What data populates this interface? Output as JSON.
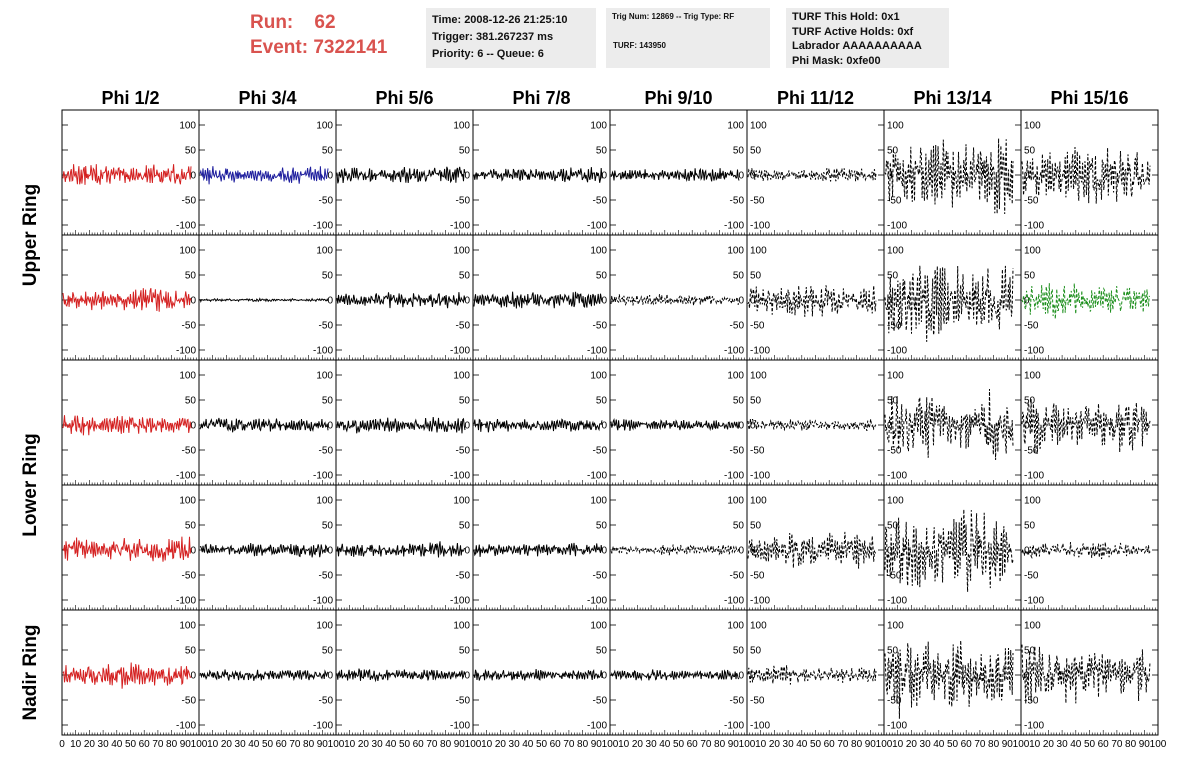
{
  "header": {
    "run_label": "Run:",
    "run_value": "62",
    "event_label": "Event:",
    "event_value": "7322141"
  },
  "info_box_1": {
    "line1": "Time: 2008-12-26 21:25:10",
    "line2": "Trigger: 381.267237 ms",
    "line3": "Priority: 6 -- Queue: 6"
  },
  "info_box_2": {
    "line1": "Trig Num: 12869 -- Trig Type: RF",
    "line2": "TURF: 143950"
  },
  "info_box_3": {
    "line1": "TURF This Hold: 0x1",
    "line2": "TURF Active Holds: 0xf",
    "line3": "Labrador AAAAAAAAAA",
    "line4": "Phi Mask: 0xfe00"
  },
  "colors": {
    "highlight_red": "#d42020",
    "highlight_blue": "#1f1f9e",
    "highlight_green": "#1d8f1d",
    "default_trace": "#000000",
    "header_text": "#d9534f",
    "info_box_bg": "#ececec"
  },
  "chart_data": {
    "type": "line",
    "columns": [
      "Phi 1/2",
      "Phi 3/4",
      "Phi 5/6",
      "Phi 7/8",
      "Phi 9/10",
      "Phi 11/12",
      "Phi 13/14",
      "Phi 15/16"
    ],
    "rows": [
      "Upper Ring",
      "Lower Ring",
      "Nadir Ring"
    ],
    "ylim": [
      -120,
      130
    ],
    "xlim": [
      0,
      100
    ],
    "y_ticks": [
      -100,
      -50,
      0,
      50,
      100
    ],
    "x_ticks": [
      0,
      10,
      20,
      30,
      40,
      50,
      60,
      70,
      80,
      90,
      100
    ],
    "panels": [
      {
        "row": 0,
        "col": 0,
        "amplitude": 22,
        "style": "solid",
        "color": "red"
      },
      {
        "row": 0,
        "col": 1,
        "amplitude": 18,
        "style": "solid",
        "color": "blue"
      },
      {
        "row": 0,
        "col": 2,
        "amplitude": 17,
        "style": "solid",
        "color": "black"
      },
      {
        "row": 0,
        "col": 3,
        "amplitude": 15,
        "style": "solid",
        "color": "black"
      },
      {
        "row": 0,
        "col": 4,
        "amplitude": 13,
        "style": "solid",
        "color": "black"
      },
      {
        "row": 0,
        "col": 5,
        "amplitude": 14,
        "style": "dashed",
        "color": "black"
      },
      {
        "row": 0,
        "col": 6,
        "amplitude": 75,
        "style": "dashed",
        "color": "black"
      },
      {
        "row": 0,
        "col": 7,
        "amplitude": 60,
        "style": "dashed",
        "color": "black"
      },
      {
        "row": 1,
        "col": 0,
        "amplitude": 22,
        "style": "solid",
        "color": "red"
      },
      {
        "row": 1,
        "col": 1,
        "amplitude": 3,
        "style": "solid",
        "color": "black"
      },
      {
        "row": 1,
        "col": 2,
        "amplitude": 16,
        "style": "solid",
        "color": "black"
      },
      {
        "row": 1,
        "col": 3,
        "amplitude": 17,
        "style": "solid",
        "color": "black"
      },
      {
        "row": 1,
        "col": 4,
        "amplitude": 12,
        "style": "dashed",
        "color": "black"
      },
      {
        "row": 1,
        "col": 5,
        "amplitude": 32,
        "style": "dashed",
        "color": "black"
      },
      {
        "row": 1,
        "col": 6,
        "amplitude": 80,
        "style": "dashed",
        "color": "black"
      },
      {
        "row": 1,
        "col": 7,
        "amplitude": 33,
        "style": "dashed",
        "color": "green"
      },
      {
        "row": 2,
        "col": 0,
        "amplitude": 20,
        "style": "solid",
        "color": "red"
      },
      {
        "row": 2,
        "col": 1,
        "amplitude": 15,
        "style": "solid",
        "color": "black"
      },
      {
        "row": 2,
        "col": 2,
        "amplitude": 17,
        "style": "solid",
        "color": "black"
      },
      {
        "row": 2,
        "col": 3,
        "amplitude": 14,
        "style": "solid",
        "color": "black"
      },
      {
        "row": 2,
        "col": 4,
        "amplitude": 11,
        "style": "solid",
        "color": "black"
      },
      {
        "row": 2,
        "col": 5,
        "amplitude": 12,
        "style": "dashed",
        "color": "black"
      },
      {
        "row": 2,
        "col": 6,
        "amplitude": 70,
        "style": "dashed",
        "color": "black"
      },
      {
        "row": 2,
        "col": 7,
        "amplitude": 55,
        "style": "dashed",
        "color": "black"
      },
      {
        "row": 3,
        "col": 0,
        "amplitude": 25,
        "style": "solid",
        "color": "red"
      },
      {
        "row": 3,
        "col": 1,
        "amplitude": 14,
        "style": "solid",
        "color": "black"
      },
      {
        "row": 3,
        "col": 2,
        "amplitude": 15,
        "style": "solid",
        "color": "black"
      },
      {
        "row": 3,
        "col": 3,
        "amplitude": 14,
        "style": "solid",
        "color": "black"
      },
      {
        "row": 3,
        "col": 4,
        "amplitude": 10,
        "style": "dashed",
        "color": "black"
      },
      {
        "row": 3,
        "col": 5,
        "amplitude": 35,
        "style": "dashed",
        "color": "black"
      },
      {
        "row": 3,
        "col": 6,
        "amplitude": 78,
        "style": "dashed",
        "color": "black"
      },
      {
        "row": 3,
        "col": 7,
        "amplitude": 17,
        "style": "dashed",
        "color": "black"
      },
      {
        "row": 4,
        "col": 0,
        "amplitude": 24,
        "style": "solid",
        "color": "red"
      },
      {
        "row": 4,
        "col": 1,
        "amplitude": 11,
        "style": "solid",
        "color": "black"
      },
      {
        "row": 4,
        "col": 2,
        "amplitude": 12,
        "style": "solid",
        "color": "black"
      },
      {
        "row": 4,
        "col": 3,
        "amplitude": 12,
        "style": "solid",
        "color": "black"
      },
      {
        "row": 4,
        "col": 4,
        "amplitude": 11,
        "style": "solid",
        "color": "black"
      },
      {
        "row": 4,
        "col": 5,
        "amplitude": 18,
        "style": "dashed",
        "color": "black"
      },
      {
        "row": 4,
        "col": 6,
        "amplitude": 75,
        "style": "dashed",
        "color": "black"
      },
      {
        "row": 4,
        "col": 7,
        "amplitude": 58,
        "style": "dashed",
        "color": "black"
      }
    ]
  }
}
